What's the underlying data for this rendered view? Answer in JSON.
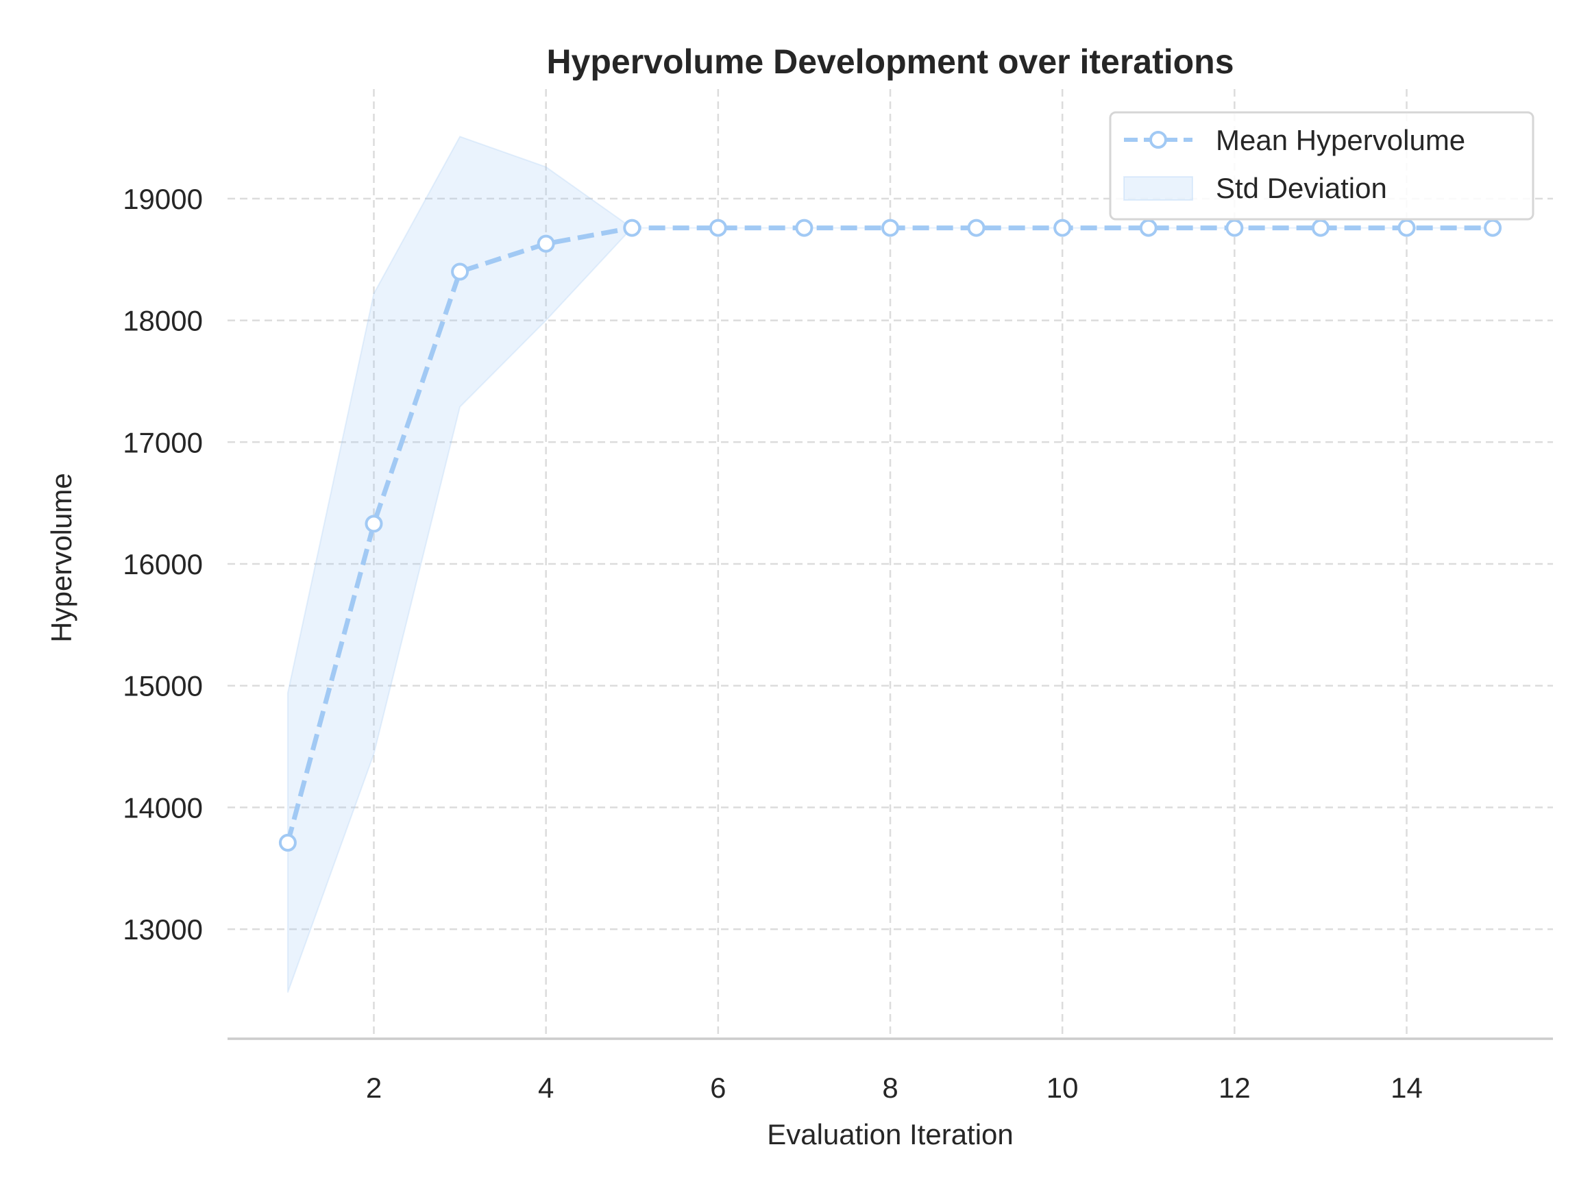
{
  "chart_data": {
    "type": "line",
    "title": "Hypervolume Development over iterations",
    "xlabel": "Evaluation Iteration",
    "ylabel": "Hypervolume",
    "xlim": [
      0.3,
      15.7
    ],
    "ylim": [
      12100,
      19900
    ],
    "xticks": [
      2,
      4,
      6,
      8,
      10,
      12,
      14
    ],
    "yticks": [
      13000,
      14000,
      15000,
      16000,
      17000,
      18000,
      19000
    ],
    "grid": true,
    "legend_position": "top-right",
    "x": [
      1,
      2,
      3,
      4,
      5,
      6,
      7,
      8,
      9,
      10,
      11,
      12,
      13,
      14,
      15
    ],
    "series": [
      {
        "name": "Mean Hypervolume",
        "style": "dashed line with hollow circle markers",
        "color": "#a1c9f4",
        "values": [
          13710,
          16330,
          18400,
          18630,
          18760,
          18760,
          18760,
          18760,
          18760,
          18760,
          18760,
          18760,
          18760,
          18760,
          18760
        ]
      }
    ],
    "band": {
      "name": "Std Deviation",
      "color": "#a1c9f4",
      "lower": [
        12480,
        14440,
        17290,
        18000,
        18760,
        18760,
        18760,
        18760,
        18760,
        18760,
        18760,
        18760,
        18760,
        18760,
        18760
      ],
      "upper": [
        14940,
        18220,
        19510,
        19260,
        18760,
        18760,
        18760,
        18760,
        18760,
        18760,
        18760,
        18760,
        18760,
        18760,
        18760
      ]
    }
  }
}
